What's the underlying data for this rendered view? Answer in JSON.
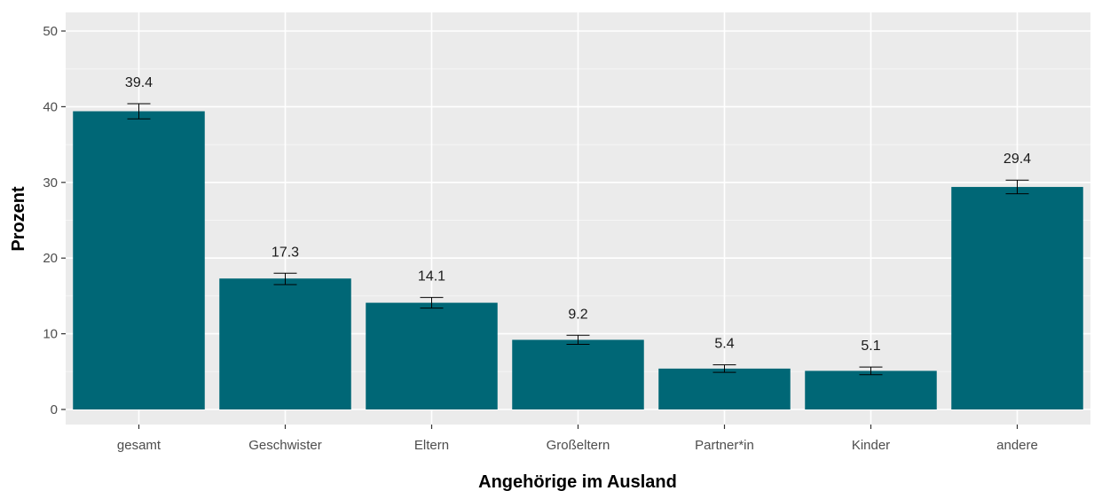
{
  "chart_data": {
    "type": "bar",
    "xlabel": "Angehörige im Ausland",
    "ylabel": "Prozent",
    "ylim": [
      0,
      52
    ],
    "yticks": [
      0,
      10,
      20,
      30,
      40,
      50
    ],
    "categories": [
      "gesamt",
      "Geschwister",
      "Eltern",
      "Großeltern",
      "Partner*in",
      "Kinder",
      "andere"
    ],
    "values": [
      39.4,
      17.3,
      14.1,
      9.2,
      5.4,
      5.1,
      29.4
    ],
    "value_labels": [
      "39.4",
      "17.3",
      "14.1",
      "9.2",
      "5.4",
      "5.1",
      "29.4"
    ],
    "error_low": [
      38.4,
      16.5,
      13.4,
      8.6,
      4.9,
      4.6,
      28.5
    ],
    "error_high": [
      40.4,
      18.0,
      14.8,
      9.8,
      5.9,
      5.6,
      30.3
    ],
    "grid": true,
    "legend": "none",
    "colors": {
      "bar": "#006776",
      "panel": "#ebebeb",
      "grid_major": "#ffffff",
      "grid_minor": "#f5f5f5",
      "error_bar": "#000000"
    }
  }
}
